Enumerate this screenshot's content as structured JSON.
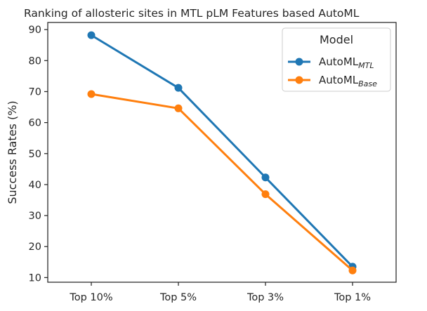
{
  "chart_data": {
    "type": "line",
    "title": "Ranking of allosteric sites in MTL pLM Features based AutoML",
    "xlabel": "",
    "ylabel": "Success Rates (%)",
    "categories": [
      "Top 10%",
      "Top 5%",
      "Top 3%",
      "Top 1%"
    ],
    "yticks": [
      10,
      20,
      30,
      40,
      50,
      60,
      70,
      80,
      90
    ],
    "ylim": [
      8.5,
      92.3
    ],
    "grid": false,
    "legend": {
      "title": "Model",
      "placement": "top-right"
    },
    "series": [
      {
        "name": "AutoML",
        "name_sub": "MTL",
        "color": "#1f77b4",
        "values": [
          88.2,
          71.2,
          42.3,
          13.5
        ]
      },
      {
        "name": "AutoML",
        "name_sub": "Base",
        "color": "#ff7f0e",
        "values": [
          69.2,
          64.6,
          36.9,
          12.3
        ]
      }
    ]
  }
}
